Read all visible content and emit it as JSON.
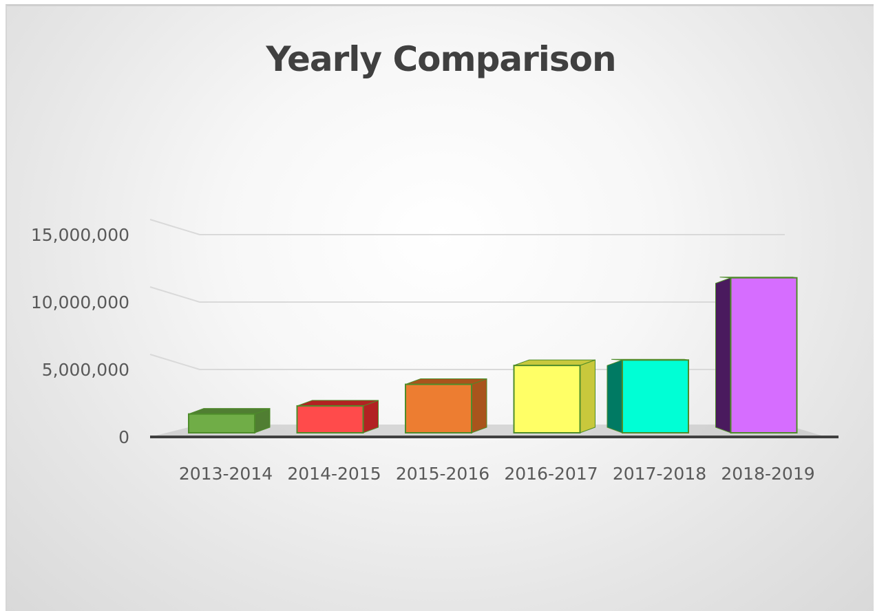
{
  "chart_data": {
    "type": "bar",
    "title": "Yearly Comparison",
    "categories": [
      "2013-2014",
      "2014-2015",
      "2015-2016",
      "2016-2017",
      "2017-2018",
      "2018-2019"
    ],
    "values": [
      1700000,
      2300000,
      3900000,
      5300000,
      5700000,
      11800000
    ],
    "ylim": [
      0,
      15000000
    ],
    "y_ticks": [
      "0",
      "5,000,000",
      "10,000,000",
      "15,000,000"
    ],
    "grid": true,
    "legend": "none",
    "bar_colors": [
      "#70ad47",
      "#ff4b4b",
      "#ed7d31",
      "#ffff66",
      "#00ffd5",
      "#d66dff"
    ],
    "bar_side_colors": [
      "#507e32",
      "#b22222",
      "#a9541c",
      "#c8c83c",
      "#007a63",
      "#4a1a5e"
    ],
    "bar_outline_color": "#4e8c2a"
  }
}
